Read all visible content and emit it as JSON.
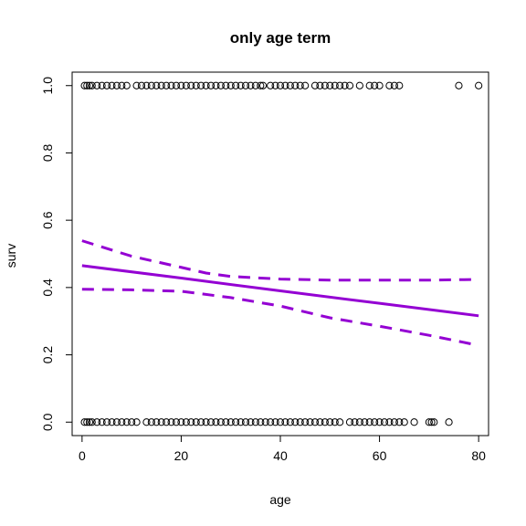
{
  "chart_data": {
    "type": "scatter",
    "title": "only age term",
    "xlabel": "age",
    "ylabel": "surv",
    "xlim": [
      -2,
      82
    ],
    "ylim": [
      -0.04,
      1.04
    ],
    "grid": false,
    "x_ticks": [
      0,
      20,
      40,
      60,
      80
    ],
    "x_tick_labels": [
      "0",
      "20",
      "40",
      "60",
      "80"
    ],
    "y_ticks": [
      0.0,
      0.2,
      0.4,
      0.6,
      0.8,
      1.0
    ],
    "y_tick_labels": [
      "0.0",
      "0.2",
      "0.4",
      "0.6",
      "0.8",
      "1.0"
    ],
    "colors": {
      "points": "#000000",
      "fit": "#9400d3",
      "axes": "#000000"
    },
    "points": {
      "surv_1_ages": [
        0.5,
        1,
        1.5,
        2,
        3,
        4,
        5,
        6,
        7,
        8,
        9,
        11,
        12,
        13,
        14,
        15,
        16,
        17,
        18,
        19,
        20,
        21,
        22,
        23,
        24,
        25,
        26,
        27,
        28,
        29,
        30,
        31,
        32,
        33,
        34,
        35,
        36,
        36.5,
        38,
        39,
        40,
        41,
        42,
        43,
        44,
        45,
        47,
        48,
        49,
        50,
        51,
        52,
        53,
        54,
        56,
        58,
        59,
        60,
        62,
        63,
        64,
        76,
        80
      ],
      "surv_0_ages": [
        0.5,
        1,
        1.5,
        2,
        3,
        4,
        5,
        6,
        7,
        8,
        9,
        10,
        11,
        13,
        14,
        15,
        16,
        17,
        18,
        19,
        20,
        21,
        22,
        23,
        24,
        25,
        26,
        27,
        28,
        29,
        30,
        31,
        32,
        33,
        34,
        35,
        36,
        37,
        38,
        39,
        40,
        41,
        42,
        43,
        44,
        45,
        46,
        47,
        48,
        49,
        50,
        51,
        52,
        54,
        55,
        56,
        57,
        58,
        59,
        60,
        61,
        62,
        63,
        64,
        65,
        67,
        70,
        70.5,
        71,
        74
      ]
    },
    "series": [
      {
        "values": [
          [
            0,
            0.465
          ],
          [
            20,
            0.428
          ],
          [
            40,
            0.39
          ],
          [
            60,
            0.353
          ],
          [
            80,
            0.316
          ]
        ]
      },
      {
        "values": [
          [
            0,
            0.539
          ],
          [
            10,
            0.493
          ],
          [
            20,
            0.46
          ],
          [
            25,
            0.443
          ],
          [
            30,
            0.433
          ],
          [
            40,
            0.425
          ],
          [
            50,
            0.422
          ],
          [
            60,
            0.422
          ],
          [
            70,
            0.422
          ],
          [
            80,
            0.424
          ]
        ]
      },
      {
        "values": [
          [
            0,
            0.395
          ],
          [
            10,
            0.393
          ],
          [
            20,
            0.389
          ],
          [
            30,
            0.37
          ],
          [
            40,
            0.345
          ],
          [
            50,
            0.31
          ],
          [
            60,
            0.285
          ],
          [
            70,
            0.258
          ],
          [
            80,
            0.228
          ]
        ]
      }
    ]
  }
}
